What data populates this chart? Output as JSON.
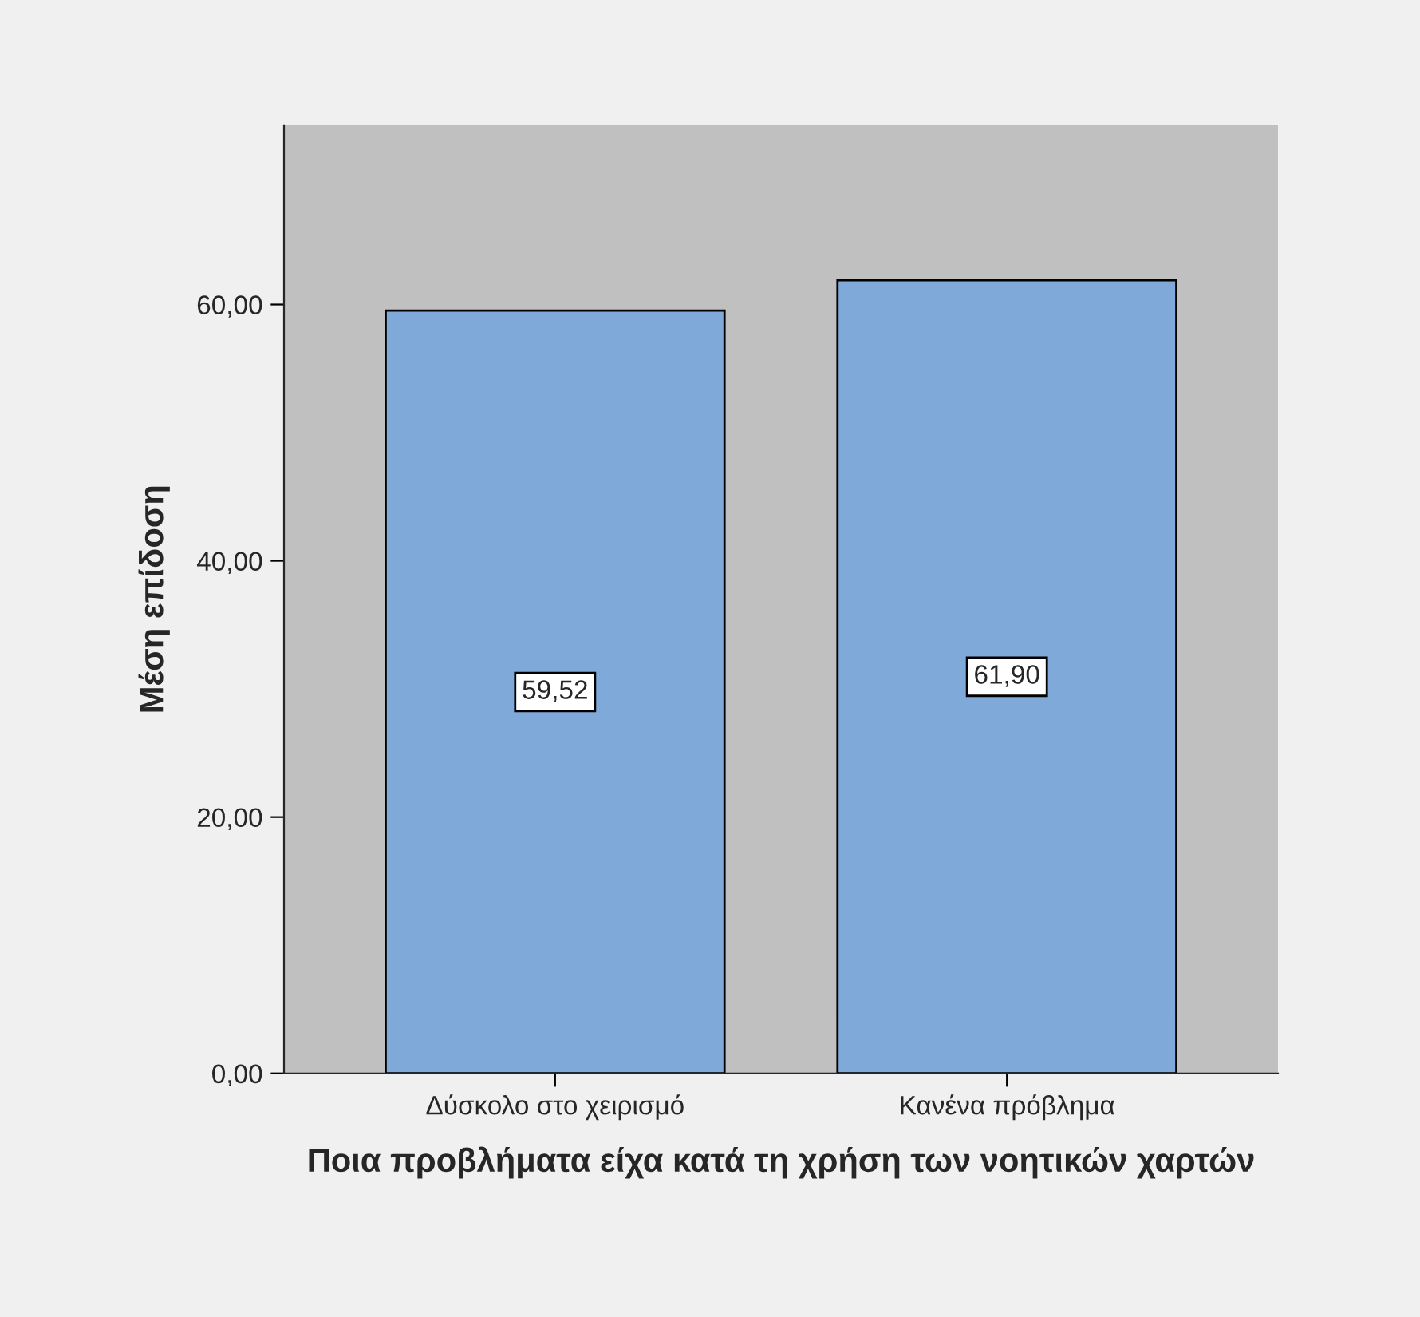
{
  "chart_data": {
    "type": "bar",
    "xlabel": "Ποια προβλήματα είχα κατά τη χρήση των νοητικών χαρτών",
    "ylabel": "Μέση επίδοση",
    "categories": [
      "Δύσκολο στο χειρισμό",
      "Κανένα πρόβλημα"
    ],
    "values": [
      59.52,
      61.9
    ],
    "value_labels": [
      "59,52",
      "61,90"
    ],
    "color": "#7ea9d9",
    "ylim": [
      0,
      74
    ],
    "yticks": [
      {
        "value": 0,
        "label": "0,00"
      },
      {
        "value": 20,
        "label": "20,00"
      },
      {
        "value": 40,
        "label": "40,00"
      },
      {
        "value": 60,
        "label": "60,00"
      }
    ],
    "grid": false
  }
}
